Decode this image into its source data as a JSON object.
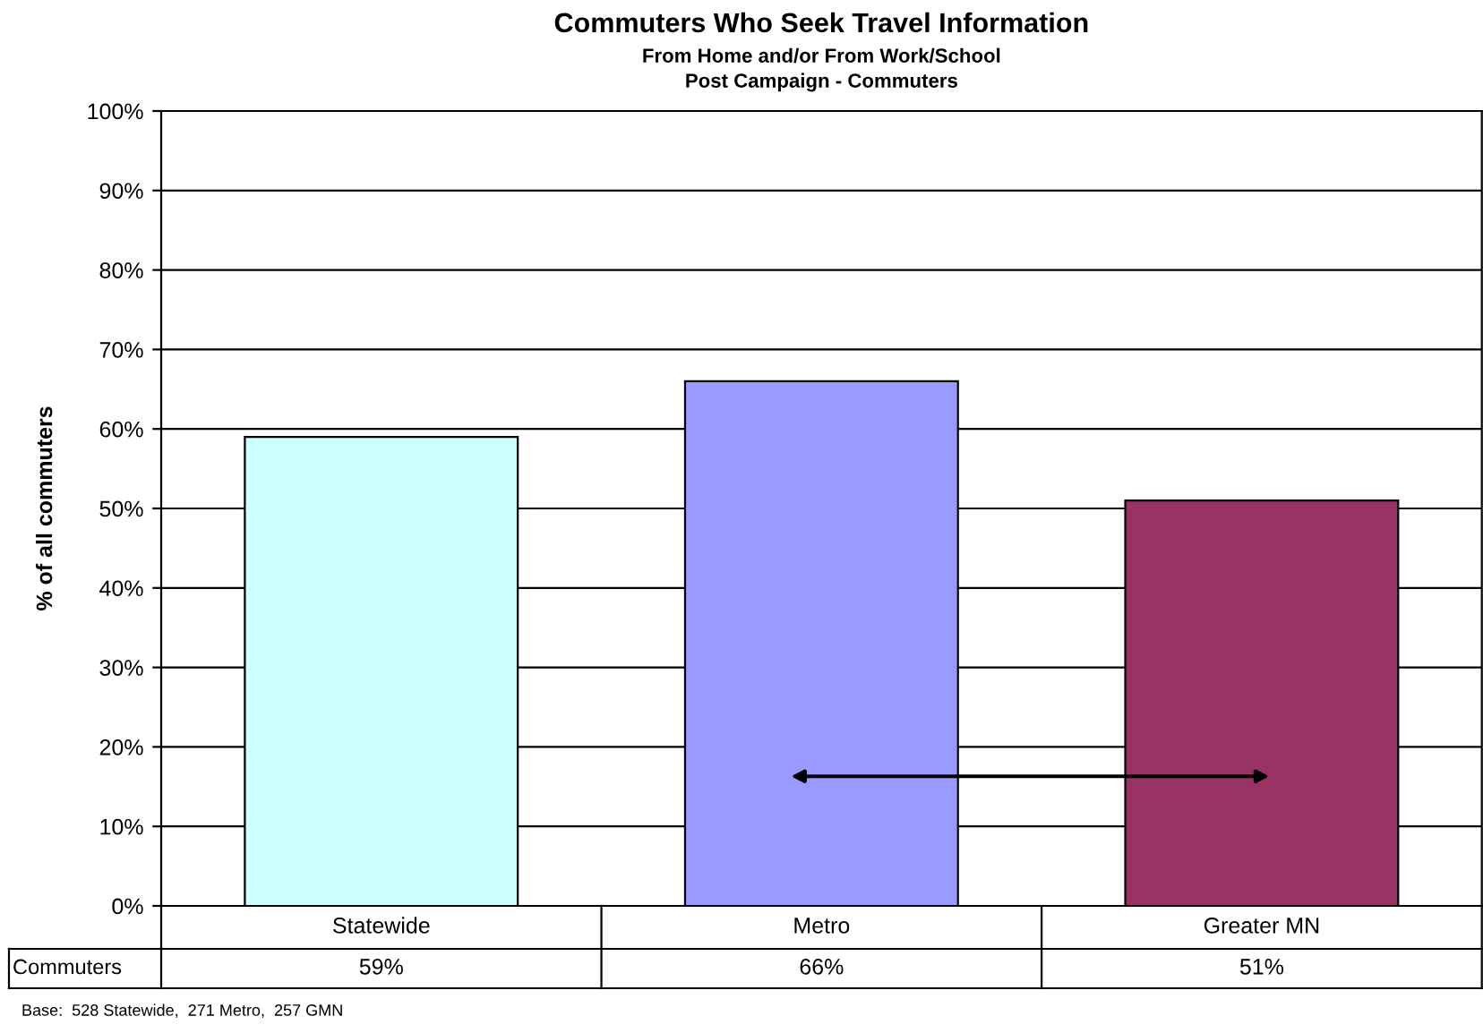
{
  "chart_data": {
    "type": "bar",
    "title": "Commuters Who Seek Travel Information",
    "subtitle": "From Home and/or From Work/School\nPost Campaign - Commuters",
    "ylabel": "% of all commuters",
    "categories": [
      "Statewide",
      "Metro",
      "Greater MN"
    ],
    "series": [
      {
        "name": "Commuters",
        "colors": [
          "#ccffff",
          "#9999ff",
          "#993366"
        ],
        "values": [
          59,
          66,
          51
        ],
        "value_labels": [
          "59%",
          "66%",
          "51%"
        ]
      }
    ],
    "ylim": [
      0,
      100
    ],
    "yticks": [
      {
        "value": 0,
        "label": "0%"
      },
      {
        "value": 10,
        "label": "10%"
      },
      {
        "value": 20,
        "label": "20%"
      },
      {
        "value": 30,
        "label": "30%"
      },
      {
        "value": 40,
        "label": "40%"
      },
      {
        "value": 50,
        "label": "50%"
      },
      {
        "value": 60,
        "label": "60%"
      },
      {
        "value": 70,
        "label": "70%"
      },
      {
        "value": 80,
        "label": "80%"
      },
      {
        "value": 90,
        "label": "90%"
      },
      {
        "value": 100,
        "label": "100%"
      }
    ],
    "grid": "y",
    "legend": "bottom",
    "annotations": [
      "Base:  528 Statewide,  271 Metro,  257 GMN"
    ]
  }
}
